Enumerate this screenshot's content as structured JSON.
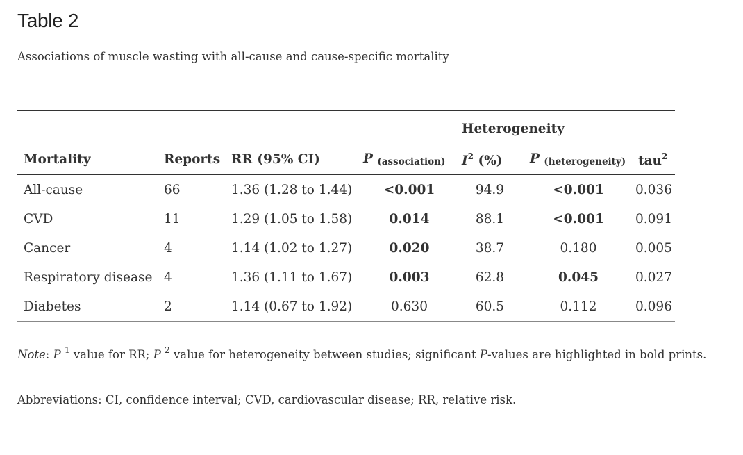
{
  "title": "Table 2",
  "caption": "Associations of muscle wasting with all-cause and cause-specific mortality",
  "table": {
    "group_header": "Heterogeneity",
    "columns": {
      "mortality": "Mortality",
      "reports": "Reports",
      "rr": "RR (95% CI)",
      "p_assoc_letter": "P",
      "p_assoc_sub": "(association)",
      "i2_letter": "I",
      "i2_sup": "2",
      "i2_unit": "(%)",
      "p_het_letter": "P",
      "p_het_sub": "(heterogeneity)",
      "tau_base": "tau",
      "tau_sup": "2"
    },
    "rows": [
      {
        "mortality": "All-cause",
        "reports": "66",
        "rr": "1.36 (1.28 to 1.44)",
        "p_assoc": "<0.001",
        "p_assoc_bold": true,
        "i2": "94.9",
        "p_het": "<0.001",
        "p_het_bold": true,
        "tau2": "0.036"
      },
      {
        "mortality": "CVD",
        "reports": "11",
        "rr": "1.29 (1.05 to 1.58)",
        "p_assoc": "0.014",
        "p_assoc_bold": true,
        "i2": "88.1",
        "p_het": "<0.001",
        "p_het_bold": true,
        "tau2": "0.091"
      },
      {
        "mortality": "Cancer",
        "reports": "4",
        "rr": "1.14 (1.02 to 1.27)",
        "p_assoc": "0.020",
        "p_assoc_bold": true,
        "i2": "38.7",
        "p_het": "0.180",
        "p_het_bold": false,
        "tau2": "0.005"
      },
      {
        "mortality": "Respiratory disease",
        "reports": "4",
        "rr": "1.36 (1.11 to 1.67)",
        "p_assoc": "0.003",
        "p_assoc_bold": true,
        "i2": "62.8",
        "p_het": "0.045",
        "p_het_bold": true,
        "tau2": "0.027"
      },
      {
        "mortality": "Diabetes",
        "reports": "2",
        "rr": "1.14 (0.67 to 1.92)",
        "p_assoc": "0.630",
        "p_assoc_bold": false,
        "i2": "60.5",
        "p_het": "0.112",
        "p_het_bold": false,
        "tau2": "0.096"
      }
    ]
  },
  "note": {
    "label": "Note",
    "colon": ": ",
    "p_letter": "P",
    "sup1": "1",
    "part1": " value for RR; ",
    "sup2": "2",
    "part2": " value for heterogeneity between studies; significant ",
    "p_word": "P",
    "part3": "-values are highlighted in bold prints."
  },
  "abbreviations": "Abbreviations: CI, confidence interval; CVD, cardiovascular disease; RR, relative risk."
}
